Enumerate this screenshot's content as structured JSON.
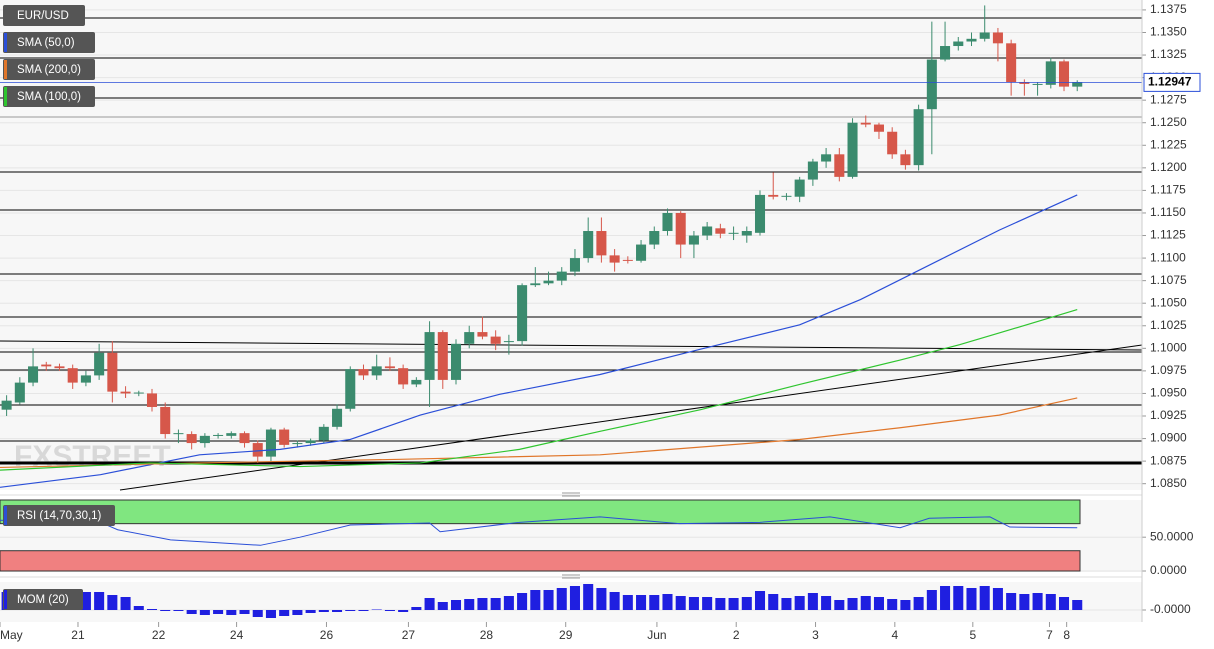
{
  "chart_data": [
    {
      "type": "candlestick",
      "name": "EUR/USD",
      "color_up": "#3b8b6e",
      "color_down": "#d6574a",
      "watermark": "FXSTREET",
      "open": [
        1.0932,
        1.094,
        1.0962,
        1.0982,
        1.098,
        1.0978,
        1.0962,
        1.097,
        1.0995,
        1.0952,
        1.095,
        1.095,
        1.0935,
        1.0905,
        1.0905,
        1.0895,
        1.0903,
        1.0903,
        1.0906,
        1.0895,
        1.088,
        1.091,
        1.0894,
        1.0895,
        1.0898,
        1.0913,
        1.0933,
        1.0977,
        1.097,
        1.098,
        1.0978,
        1.096,
        1.0965,
        1.1018,
        1.0965,
        1.1005,
        1.1018,
        1.1013,
        1.1007,
        1.1008,
        1.107,
        1.1072,
        1.1075,
        1.1085,
        1.11,
        1.113,
        1.1103,
        1.1098,
        1.1097,
        1.1115,
        1.113,
        1.115,
        1.1115,
        1.1125,
        1.1133,
        1.1127,
        1.1125,
        1.1128,
        1.117,
        1.1168,
        1.1168,
        1.1187,
        1.1207,
        1.1215,
        1.119,
        1.125,
        1.1248,
        1.124,
        1.1215,
        1.1203,
        1.1265,
        1.132,
        1.1335,
        1.134,
        1.1343,
        1.135,
        1.1338,
        1.1295,
        1.1292,
        1.1292,
        1.1318,
        1.129
      ],
      "high": [
        1.0948,
        1.0968,
        1.1,
        1.0985,
        1.0983,
        1.0982,
        1.0975,
        1.1005,
        1.1008,
        1.0958,
        1.0953,
        1.0955,
        1.094,
        1.091,
        1.0908,
        1.0906,
        1.0906,
        1.0908,
        1.0908,
        1.0898,
        1.0912,
        1.0912,
        1.0898,
        1.09,
        1.0916,
        1.0938,
        1.098,
        1.0982,
        1.0993,
        1.099,
        1.0982,
        1.0968,
        1.103,
        1.102,
        1.101,
        1.1025,
        1.1035,
        1.102,
        1.1015,
        1.1072,
        1.109,
        1.1085,
        1.109,
        1.111,
        1.1145,
        1.1145,
        1.111,
        1.1102,
        1.112,
        1.1135,
        1.1155,
        1.1152,
        1.113,
        1.114,
        1.1138,
        1.1135,
        1.1135,
        1.1175,
        1.1195,
        1.1172,
        1.119,
        1.121,
        1.1222,
        1.1222,
        1.1255,
        1.1258,
        1.125,
        1.1245,
        1.122,
        1.127,
        1.1362,
        1.1362,
        1.1345,
        1.135,
        1.138,
        1.1355,
        1.1342,
        1.1298,
        1.1295,
        1.1322,
        1.132,
        1.1297
      ],
      "low": [
        1.0925,
        1.0938,
        1.0958,
        1.0975,
        1.0975,
        1.0955,
        1.0958,
        1.0965,
        1.094,
        1.0945,
        1.0947,
        1.093,
        1.09,
        1.0895,
        1.0888,
        1.089,
        1.09,
        1.09,
        1.089,
        1.0873,
        1.0875,
        1.089,
        1.089,
        1.0892,
        1.0895,
        1.091,
        1.093,
        1.0965,
        1.0965,
        1.0975,
        1.0955,
        1.0957,
        1.0935,
        1.0955,
        1.096,
        1.1,
        1.101,
        1.0998,
        1.0993,
        1.1003,
        1.1068,
        1.107,
        1.107,
        1.108,
        1.1095,
        1.1095,
        1.1085,
        1.1094,
        1.1095,
        1.111,
        1.1125,
        1.11,
        1.11,
        1.112,
        1.1122,
        1.112,
        1.1117,
        1.1125,
        1.1165,
        1.1164,
        1.1162,
        1.118,
        1.12,
        1.1185,
        1.1188,
        1.1245,
        1.1232,
        1.121,
        1.1198,
        1.1197,
        1.1215,
        1.1318,
        1.133,
        1.1335,
        1.134,
        1.1318,
        1.128,
        1.128,
        1.128,
        1.1288,
        1.1285,
        1.1285
      ],
      "close": [
        1.0942,
        1.0962,
        1.098,
        1.098,
        1.0978,
        1.0962,
        1.097,
        1.0995,
        1.0952,
        1.095,
        1.0951,
        1.0935,
        1.0905,
        1.0906,
        1.0895,
        1.0903,
        1.0904,
        1.0906,
        1.0895,
        1.088,
        1.091,
        1.0893,
        1.0895,
        1.0898,
        1.0913,
        1.0933,
        1.0977,
        1.097,
        1.098,
        1.0978,
        1.096,
        1.0965,
        1.1018,
        1.0965,
        1.1005,
        1.1018,
        1.1013,
        1.1005,
        1.1008,
        1.107,
        1.1072,
        1.1075,
        1.1085,
        1.11,
        1.113,
        1.1103,
        1.1095,
        1.1097,
        1.1115,
        1.113,
        1.115,
        1.1115,
        1.1125,
        1.1135,
        1.1127,
        1.1128,
        1.113,
        1.117,
        1.1168,
        1.1169,
        1.1187,
        1.1207,
        1.1215,
        1.119,
        1.125,
        1.1248,
        1.124,
        1.1215,
        1.1203,
        1.1265,
        1.132,
        1.1335,
        1.134,
        1.1343,
        1.135,
        1.1338,
        1.1295,
        1.1293,
        1.1293,
        1.1318,
        1.129,
        1.1295
      ],
      "overlays": [
        {
          "name": "SMA (50,0)",
          "color": "#2b4fd8",
          "x": [
            0,
            7.6,
            15.1,
            21.2,
            26.5,
            31.8,
            37.8,
            45.4,
            53.0,
            60.5,
            65.1,
            69.6,
            75.6,
            81.5
          ],
          "values": [
            1.0846,
            1.086,
            1.0882,
            1.0888,
            1.0899,
            1.0926,
            1.0949,
            1.0971,
            1.0999,
            1.1026,
            1.1054,
            1.1087,
            1.1131,
            1.117
          ]
        },
        {
          "name": "SMA (200,0)",
          "color": "#e0762a",
          "x": [
            0,
            15.1,
            30.3,
            45.4,
            60.5,
            68.1,
            75.6,
            81.5
          ],
          "values": [
            1.0868,
            1.0873,
            1.0877,
            1.0882,
            1.0899,
            1.0912,
            1.0926,
            1.0945
          ]
        },
        {
          "name": "SMA (100,0)",
          "color": "#2fc52f",
          "x": [
            0,
            11.3,
            22.7,
            31.8,
            39.3,
            45.4,
            53.0,
            60.5,
            68.1,
            72.6,
            75.6,
            81.5
          ],
          "values": [
            1.0865,
            1.0873,
            1.0869,
            1.0873,
            1.0888,
            1.0908,
            1.0932,
            1.096,
            1.0987,
            1.1004,
            1.1017,
            1.1043
          ]
        }
      ],
      "last_price": 1.12947,
      "last_price_color": "#2b4fd8",
      "xlim": [
        0,
        86.4
      ],
      "xticks": [
        {
          "value": 0,
          "label": "May"
        },
        {
          "value": 5.9,
          "label": "21"
        },
        {
          "value": 12.0,
          "label": "22"
        },
        {
          "value": 17.9,
          "label": "24"
        },
        {
          "value": 24.7,
          "label": "26"
        },
        {
          "value": 30.9,
          "label": "27"
        },
        {
          "value": 36.8,
          "label": "28"
        },
        {
          "value": 42.8,
          "label": "29"
        },
        {
          "value": 49.7,
          "label": "Jun"
        },
        {
          "value": 55.7,
          "label": "2"
        },
        {
          "value": 61.7,
          "label": "3"
        },
        {
          "value": 67.7,
          "label": "4"
        },
        {
          "value": 73.6,
          "label": "5"
        },
        {
          "value": 79.4,
          "label": "7"
        },
        {
          "value": 80.7,
          "label": "8"
        }
      ],
      "ylim": [
        1.0843,
        1.1386
      ],
      "yticks": [
        {
          "value": 1.085,
          "label": "1.0850"
        },
        1.0875,
        {
          "value": 1.09,
          "label": "1.0900"
        },
        1.0925,
        {
          "value": 1.095,
          "label": "1.0950"
        },
        1.0975,
        {
          "value": 1.1,
          "label": "1.1000"
        },
        1.1025,
        {
          "value": 1.105,
          "label": "1.1050"
        },
        1.1075,
        {
          "value": 1.11,
          "label": "1.1100"
        },
        1.1125,
        {
          "value": 1.115,
          "label": "1.1150"
        },
        1.1175,
        {
          "value": 1.12,
          "label": "1.1200"
        },
        1.1225,
        {
          "value": 1.125,
          "label": "1.1250"
        },
        1.1275,
        {
          "value": 1.13,
          "label": "1.1300"
        },
        1.1325,
        {
          "value": 1.135,
          "label": "1.1350"
        },
        1.1375
      ],
      "grid": true
    },
    {
      "type": "line",
      "name": "RSI (14,70,30,1)",
      "color": "#2b4fd8",
      "overbought": 70,
      "oversold": 30,
      "overbought_color": "#80e680",
      "oversold_color": "#f08080",
      "x": [
        0,
        7.6,
        8.9,
        12.9,
        19.7,
        22.7,
        26.5,
        32.5,
        33.3,
        39.3,
        45.4,
        51.4,
        57.5,
        62.8,
        68.1,
        70.3,
        74.9,
        76.4,
        81.5
      ],
      "values": [
        75,
        72,
        61,
        46,
        38,
        50,
        68,
        71,
        58,
        72,
        80,
        70,
        72,
        80,
        64,
        78,
        80,
        65,
        64
      ],
      "ylim": [
        0,
        105
      ],
      "yticks": [
        {
          "value": 0,
          "label": "0.0000"
        },
        {
          "value": 50,
          "label": "50.0000"
        }
      ]
    },
    {
      "type": "bar",
      "name": "MOM (20)",
      "color": "#1f1fe0",
      "values": [
        0.009,
        0.009,
        0.009,
        0.009,
        0.009,
        0.009,
        0.009,
        0.009,
        0.0075,
        0.0065,
        0.002,
        0.0005,
        -0.0005,
        -0.0005,
        -0.002,
        -0.0025,
        -0.002,
        -0.0025,
        -0.002,
        -0.0035,
        -0.004,
        -0.003,
        -0.0025,
        -0.0015,
        -0.001,
        -0.001,
        -0.0005,
        -0.0005,
        0.00025,
        -0.0005,
        -0.001,
        0.0015,
        0.006,
        0.004,
        0.005,
        0.0055,
        0.006,
        0.006,
        0.007,
        0.0085,
        0.01,
        0.01,
        0.011,
        0.012,
        0.013,
        0.011,
        0.009,
        0.0075,
        0.0075,
        0.0075,
        0.008,
        0.007,
        0.0065,
        0.0065,
        0.006,
        0.006,
        0.0065,
        0.0095,
        0.008,
        0.006,
        0.007,
        0.0085,
        0.007,
        0.005,
        0.006,
        0.007,
        0.0065,
        0.0055,
        0.005,
        0.0065,
        0.01,
        0.012,
        0.012,
        0.011,
        0.012,
        0.011,
        0.0085,
        0.008,
        0.0085,
        0.008,
        0.0065,
        0.005
      ],
      "ylim": [
        -0.006,
        0.014
      ],
      "yticks": [
        {
          "value": 0,
          "label": "-0.0000"
        }
      ]
    }
  ]
}
